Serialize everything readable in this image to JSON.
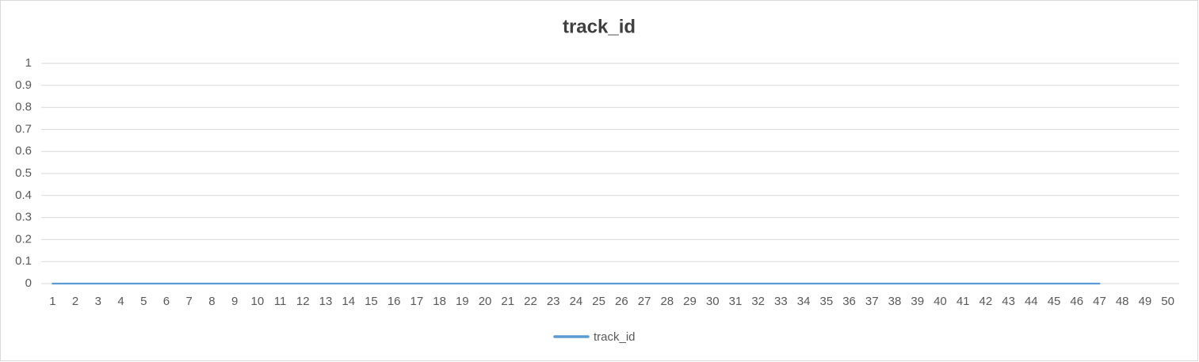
{
  "chart_data": {
    "type": "line",
    "title": "track_id",
    "categories": [
      "1",
      "2",
      "3",
      "4",
      "5",
      "6",
      "7",
      "8",
      "9",
      "10",
      "11",
      "12",
      "13",
      "14",
      "15",
      "16",
      "17",
      "18",
      "19",
      "20",
      "21",
      "22",
      "23",
      "24",
      "25",
      "26",
      "27",
      "28",
      "29",
      "30",
      "31",
      "32",
      "33",
      "34",
      "35",
      "36",
      "37",
      "38",
      "39",
      "40",
      "41",
      "42",
      "43",
      "44",
      "45",
      "46",
      "47",
      "48",
      "49",
      "50"
    ],
    "series": [
      {
        "name": "track_id",
        "color": "#5b9bd5",
        "values": [
          0,
          0,
          0,
          0,
          0,
          0,
          0,
          0,
          0,
          0,
          0,
          0,
          0,
          0,
          0,
          0,
          0,
          0,
          0,
          0,
          0,
          0,
          0,
          0,
          0,
          0,
          0,
          0,
          0,
          0,
          0,
          0,
          0,
          0,
          0,
          0,
          0,
          0,
          0,
          0,
          0,
          0,
          0,
          0,
          0,
          0,
          0,
          null,
          null,
          null
        ]
      }
    ],
    "ylim": [
      0,
      1
    ],
    "yticks": [
      0,
      0.1,
      0.2,
      0.3,
      0.4,
      0.5,
      0.6,
      0.7,
      0.8,
      0.9,
      1
    ],
    "grid": true,
    "legend": "bottom"
  }
}
